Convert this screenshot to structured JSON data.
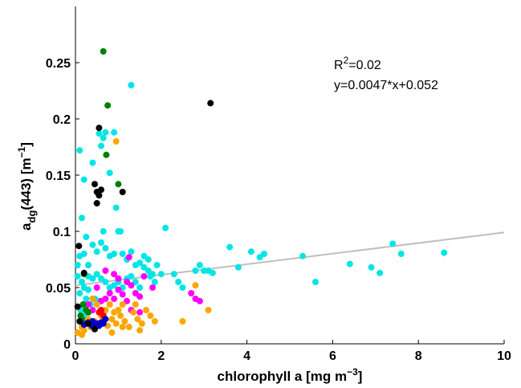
{
  "chart_data": {
    "type": "scatter",
    "title": "",
    "xlabel": "chlorophyll a [mg m^-3]",
    "xlabel_parts": {
      "main": "chlorophyll a [mg m",
      "sup": "−3",
      "close": "]"
    },
    "ylabel": "a_dg(443) [m^-1]",
    "ylabel_parts": {
      "a": "a",
      "sub": "dg",
      "mid": "(443) [m",
      "sup": "−1",
      "close": "]"
    },
    "xlim": [
      0,
      10
    ],
    "ylim": [
      0,
      0.3
    ],
    "xticks": [
      0,
      2,
      4,
      6,
      8,
      10
    ],
    "xtick_labels": [
      "0",
      "2",
      "4",
      "6",
      "8",
      "10"
    ],
    "yticks": [
      0,
      0.05,
      0.1,
      0.15,
      0.2,
      0.25
    ],
    "ytick_labels": [
      "0",
      "0.05",
      "0.1",
      "0.15",
      "0.2",
      "0.25"
    ],
    "grid": false,
    "annotations": {
      "r2_base": "R",
      "r2_sup": "2",
      "r2_rest": "=0.02",
      "equation": "y=0.0047*x+0.052"
    },
    "fit_line": {
      "slope": 0.0047,
      "intercept": 0.052,
      "x_range": [
        0,
        10
      ],
      "color": "#bfbfbf"
    },
    "series": [
      {
        "color": "#00e5e5",
        "points": [
          [
            0.1,
            0.172
          ],
          [
            0.2,
            0.146
          ],
          [
            0.15,
            0.112
          ],
          [
            0.4,
            0.161
          ],
          [
            0.55,
            0.187
          ],
          [
            0.65,
            0.183
          ],
          [
            0.7,
            0.188
          ],
          [
            0.6,
            0.176
          ],
          [
            0.9,
            0.188
          ],
          [
            1.3,
            0.23
          ],
          [
            0.8,
            0.152
          ],
          [
            0.95,
            0.121
          ],
          [
            1.05,
            0.1
          ],
          [
            1.0,
            0.1
          ],
          [
            0.2,
            0.08
          ],
          [
            0.3,
            0.07
          ],
          [
            0.25,
            0.095
          ],
          [
            0.4,
            0.088
          ],
          [
            0.5,
            0.082
          ],
          [
            0.6,
            0.09
          ],
          [
            0.7,
            0.085
          ],
          [
            0.8,
            0.078
          ],
          [
            0.9,
            0.08
          ],
          [
            1.1,
            0.08
          ],
          [
            1.2,
            0.075
          ],
          [
            1.3,
            0.082
          ],
          [
            1.4,
            0.07
          ],
          [
            1.5,
            0.072
          ],
          [
            1.6,
            0.068
          ],
          [
            1.7,
            0.065
          ],
          [
            1.8,
            0.062
          ],
          [
            0.3,
            0.06
          ],
          [
            0.4,
            0.058
          ],
          [
            0.5,
            0.062
          ],
          [
            0.6,
            0.058
          ],
          [
            0.7,
            0.055
          ],
          [
            0.8,
            0.05
          ],
          [
            0.9,
            0.052
          ],
          [
            1.0,
            0.055
          ],
          [
            1.1,
            0.05
          ],
          [
            1.2,
            0.058
          ],
          [
            1.3,
            0.06
          ],
          [
            1.4,
            0.055
          ],
          [
            1.5,
            0.05
          ],
          [
            0.1,
            0.045
          ],
          [
            0.2,
            0.05
          ],
          [
            0.3,
            0.048
          ],
          [
            0.15,
            0.055
          ],
          [
            0.25,
            0.04
          ],
          [
            0.35,
            0.035
          ],
          [
            0.45,
            0.04
          ],
          [
            0.55,
            0.038
          ],
          [
            0.05,
            0.06
          ],
          [
            0.05,
            0.07
          ],
          [
            0.1,
            0.078
          ],
          [
            0.12,
            0.03
          ],
          [
            0.2,
            0.025
          ],
          [
            2.1,
            0.103
          ],
          [
            1.9,
            0.07
          ],
          [
            2.0,
            0.062
          ],
          [
            2.3,
            0.062
          ],
          [
            2.4,
            0.055
          ],
          [
            2.5,
            0.05
          ],
          [
            2.8,
            0.065
          ],
          [
            2.9,
            0.07
          ],
          [
            3.0,
            0.065
          ],
          [
            3.1,
            0.065
          ],
          [
            3.2,
            0.063
          ],
          [
            3.6,
            0.086
          ],
          [
            3.8,
            0.068
          ],
          [
            4.1,
            0.082
          ],
          [
            4.4,
            0.08
          ],
          [
            4.3,
            0.077
          ],
          [
            5.3,
            0.078
          ],
          [
            5.6,
            0.055
          ],
          [
            6.4,
            0.071
          ],
          [
            6.9,
            0.068
          ],
          [
            7.1,
            0.063
          ],
          [
            7.4,
            0.089
          ],
          [
            7.6,
            0.08
          ],
          [
            8.6,
            0.081
          ],
          [
            1.6,
            0.078
          ],
          [
            1.7,
            0.075
          ],
          [
            1.75,
            0.06
          ],
          [
            1.85,
            0.055
          ],
          [
            0.65,
            0.1
          ]
        ]
      },
      {
        "color": "#ff00ff",
        "points": [
          [
            0.7,
            0.065
          ],
          [
            0.9,
            0.062
          ],
          [
            1.0,
            0.058
          ],
          [
            1.2,
            0.055
          ],
          [
            1.3,
            0.052
          ],
          [
            1.4,
            0.045
          ],
          [
            1.5,
            0.042
          ],
          [
            1.6,
            0.06
          ],
          [
            1.8,
            0.05
          ],
          [
            0.8,
            0.045
          ],
          [
            0.9,
            0.04
          ],
          [
            1.0,
            0.048
          ],
          [
            1.1,
            0.044
          ],
          [
            1.2,
            0.038
          ],
          [
            0.5,
            0.05
          ],
          [
            0.6,
            0.038
          ],
          [
            0.7,
            0.04
          ],
          [
            0.3,
            0.035
          ],
          [
            0.4,
            0.03
          ],
          [
            2.7,
            0.045
          ],
          [
            2.8,
            0.04
          ],
          [
            2.9,
            0.038
          ],
          [
            1.3,
            0.03
          ],
          [
            1.5,
            0.028
          ],
          [
            0.65,
            0.026
          ],
          [
            1.25,
            0.077
          ]
        ]
      },
      {
        "color": "#ffa500",
        "points": [
          [
            0.95,
            0.18
          ],
          [
            0.1,
            0.02
          ],
          [
            0.15,
            0.015
          ],
          [
            0.2,
            0.012
          ],
          [
            0.25,
            0.018
          ],
          [
            0.3,
            0.022
          ],
          [
            0.35,
            0.015
          ],
          [
            0.45,
            0.02
          ],
          [
            0.55,
            0.018
          ],
          [
            0.6,
            0.025
          ],
          [
            0.65,
            0.02
          ],
          [
            0.75,
            0.016
          ],
          [
            0.85,
            0.022
          ],
          [
            0.95,
            0.018
          ],
          [
            1.05,
            0.025
          ],
          [
            1.15,
            0.02
          ],
          [
            1.25,
            0.015
          ],
          [
            1.35,
            0.028
          ],
          [
            1.45,
            0.022
          ],
          [
            1.55,
            0.018
          ],
          [
            1.65,
            0.03
          ],
          [
            1.75,
            0.025
          ],
          [
            1.85,
            0.02
          ],
          [
            1.4,
            0.035
          ],
          [
            0.7,
            0.03
          ],
          [
            0.8,
            0.035
          ],
          [
            0.9,
            0.028
          ],
          [
            1.0,
            0.03
          ],
          [
            1.1,
            0.035
          ],
          [
            0.4,
            0.04
          ],
          [
            0.5,
            0.035
          ],
          [
            0.15,
            0.008
          ],
          [
            0.05,
            0.01
          ],
          [
            2.5,
            0.02
          ],
          [
            2.8,
            0.052
          ],
          [
            3.1,
            0.03
          ],
          [
            1.5,
            0.012
          ],
          [
            0.85,
            0.01
          ],
          [
            1.1,
            0.015
          ]
        ]
      },
      {
        "color": "#ff0000",
        "points": [
          [
            0.55,
            0.028
          ],
          [
            0.6,
            0.03
          ],
          [
            0.65,
            0.025
          ]
        ]
      },
      {
        "color": "#0000cd",
        "points": [
          [
            0.25,
            0.018
          ],
          [
            0.3,
            0.019
          ],
          [
            0.35,
            0.018
          ],
          [
            0.4,
            0.02
          ],
          [
            0.45,
            0.017
          ],
          [
            0.5,
            0.018
          ],
          [
            0.55,
            0.016
          ],
          [
            0.6,
            0.019
          ],
          [
            0.7,
            0.022
          ],
          [
            0.65,
            0.018
          ],
          [
            0.2,
            0.017
          ],
          [
            0.38,
            0.016
          ]
        ]
      },
      {
        "color": "#008000",
        "points": [
          [
            0.65,
            0.26
          ],
          [
            0.75,
            0.212
          ],
          [
            0.72,
            0.168
          ],
          [
            1.0,
            0.142
          ],
          [
            0.18,
            0.035
          ],
          [
            0.25,
            0.03
          ],
          [
            0.3,
            0.028
          ],
          [
            0.15,
            0.022
          ],
          [
            0.2,
            0.062
          ],
          [
            0.12,
            0.025
          ]
        ]
      },
      {
        "color": "#000000",
        "points": [
          [
            3.15,
            0.214
          ],
          [
            0.55,
            0.192
          ],
          [
            0.45,
            0.142
          ],
          [
            0.5,
            0.135
          ],
          [
            0.55,
            0.132
          ],
          [
            0.6,
            0.137
          ],
          [
            0.5,
            0.125
          ],
          [
            1.1,
            0.135
          ],
          [
            0.08,
            0.087
          ],
          [
            0.05,
            0.033
          ],
          [
            0.2,
            0.063
          ],
          [
            0.1,
            0.02
          ],
          [
            0.45,
            0.013
          ],
          [
            0.3,
            0.018
          ]
        ]
      }
    ]
  }
}
